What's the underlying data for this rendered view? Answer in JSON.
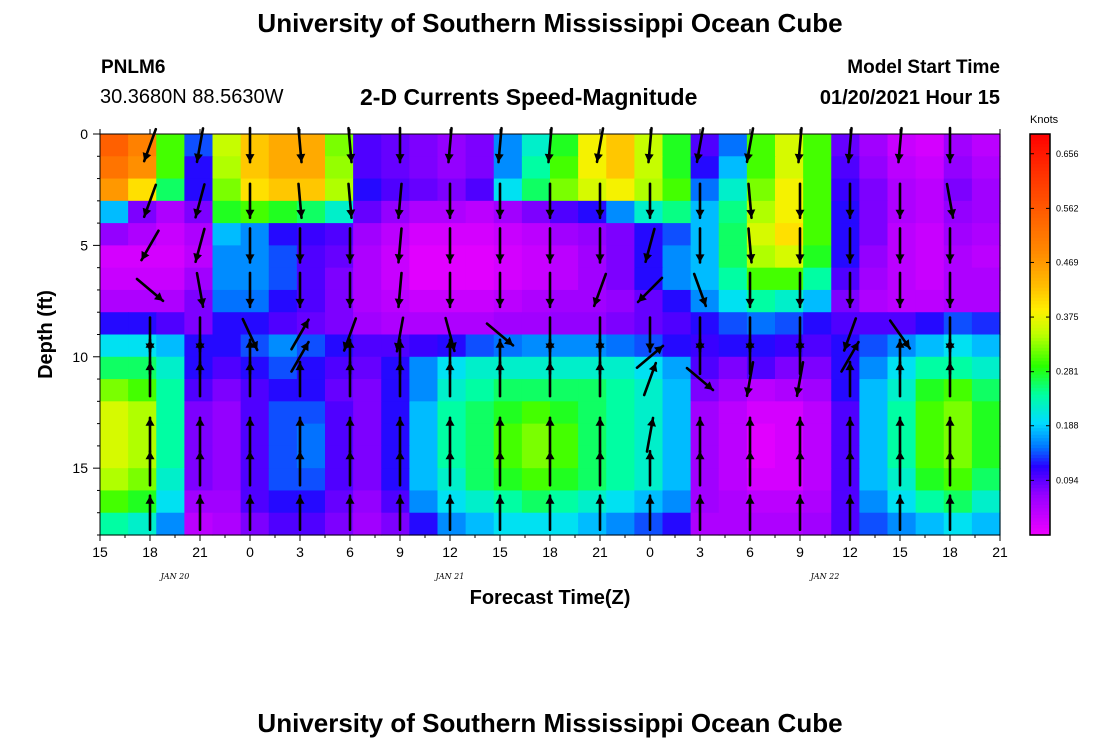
{
  "header": {
    "title": "University of Southern Mississippi Ocean Cube",
    "station": "PNLM6",
    "coordinates": "30.3680N 88.5630W",
    "subtitle": "2-D Currents Speed-Magnitude",
    "model_label": "Model Start Time",
    "model_time": "01/20/2021 Hour 15"
  },
  "footer": {
    "title": "University of Southern Mississippi Ocean Cube"
  },
  "chart_data": {
    "type": "heatmap",
    "xlabel": "Forecast Time(Z)",
    "ylabel": "Depth (ft)",
    "x_tick_labels": [
      "15",
      "18",
      "21",
      "0",
      "3",
      "6",
      "9",
      "12",
      "15",
      "18",
      "21",
      "0",
      "3",
      "6",
      "9",
      "12",
      "15",
      "18",
      "21"
    ],
    "date_labels": [
      {
        "text": "JAN 20",
        "at_tick": 1.5
      },
      {
        "text": "JAN 21",
        "at_tick": 7
      },
      {
        "text": "JAN 22",
        "at_tick": 14.5
      }
    ],
    "y_ticks": [
      0,
      5,
      10,
      15
    ],
    "ylim": [
      0,
      18
    ],
    "y_inverted": true,
    "colorbar": {
      "units": "Knots",
      "tick_labels": [
        "0.656",
        "0.562",
        "0.469",
        "0.375",
        "0.281",
        "0.188",
        "0.094"
      ],
      "tick_values": [
        0.656,
        0.562,
        0.469,
        0.375,
        0.281,
        0.188,
        0.094
      ],
      "range": [
        0,
        0.69
      ]
    },
    "depth_rows": [
      0.5,
      1.5,
      2.5,
      3.5,
      4.5,
      5.5,
      6.5,
      7.5,
      8.5,
      9.5,
      10.5,
      11.5,
      12.5,
      13.5,
      14.5,
      15.5,
      16.5,
      17.5
    ],
    "speed_knots": [
      [
        0.55,
        0.5,
        0.3,
        0.14,
        0.35,
        0.42,
        0.45,
        0.45,
        0.32,
        0.1,
        0.09,
        0.08,
        0.07,
        0.08,
        0.16,
        0.22,
        0.28,
        0.38,
        0.42,
        0.35,
        0.28,
        0.1,
        0.15,
        0.3,
        0.36,
        0.3,
        0.09,
        0.06,
        0.03,
        0.02,
        0.06,
        0.04
      ],
      [
        0.52,
        0.48,
        0.3,
        0.12,
        0.34,
        0.42,
        0.45,
        0.45,
        0.33,
        0.1,
        0.09,
        0.08,
        0.07,
        0.08,
        0.16,
        0.24,
        0.3,
        0.38,
        0.42,
        0.35,
        0.28,
        0.12,
        0.18,
        0.3,
        0.36,
        0.3,
        0.1,
        0.07,
        0.04,
        0.03,
        0.07,
        0.05
      ],
      [
        0.47,
        0.4,
        0.26,
        0.12,
        0.32,
        0.4,
        0.42,
        0.42,
        0.34,
        0.12,
        0.1,
        0.09,
        0.08,
        0.1,
        0.2,
        0.26,
        0.32,
        0.36,
        0.38,
        0.34,
        0.3,
        0.15,
        0.22,
        0.32,
        0.38,
        0.3,
        0.11,
        0.08,
        0.05,
        0.04,
        0.08,
        0.06
      ],
      [
        0.18,
        0.08,
        0.05,
        0.08,
        0.28,
        0.3,
        0.28,
        0.26,
        0.22,
        0.09,
        0.07,
        0.05,
        0.05,
        0.04,
        0.06,
        0.08,
        0.1,
        0.12,
        0.16,
        0.22,
        0.25,
        0.18,
        0.25,
        0.34,
        0.38,
        0.3,
        0.12,
        0.08,
        0.05,
        0.04,
        0.07,
        0.06
      ],
      [
        0.07,
        0.05,
        0.03,
        0.05,
        0.18,
        0.16,
        0.12,
        0.11,
        0.1,
        0.06,
        0.04,
        0.02,
        0.02,
        0.02,
        0.03,
        0.04,
        0.06,
        0.07,
        0.08,
        0.12,
        0.14,
        0.18,
        0.26,
        0.36,
        0.4,
        0.3,
        0.12,
        0.08,
        0.04,
        0.03,
        0.06,
        0.05
      ],
      [
        0.02,
        0.02,
        0.02,
        0.04,
        0.16,
        0.16,
        0.14,
        0.1,
        0.09,
        0.05,
        0.03,
        0.01,
        0.01,
        0.01,
        0.02,
        0.03,
        0.04,
        0.06,
        0.08,
        0.12,
        0.16,
        0.18,
        0.26,
        0.34,
        0.36,
        0.28,
        0.12,
        0.07,
        0.04,
        0.03,
        0.05,
        0.04
      ],
      [
        0.03,
        0.03,
        0.03,
        0.06,
        0.16,
        0.16,
        0.14,
        0.1,
        0.08,
        0.05,
        0.03,
        0.01,
        0.01,
        0.01,
        0.02,
        0.03,
        0.04,
        0.06,
        0.08,
        0.12,
        0.16,
        0.18,
        0.24,
        0.3,
        0.3,
        0.24,
        0.1,
        0.06,
        0.04,
        0.03,
        0.05,
        0.05
      ],
      [
        0.05,
        0.05,
        0.05,
        0.08,
        0.15,
        0.15,
        0.12,
        0.1,
        0.08,
        0.05,
        0.04,
        0.03,
        0.03,
        0.03,
        0.04,
        0.05,
        0.06,
        0.06,
        0.07,
        0.09,
        0.12,
        0.16,
        0.2,
        0.24,
        0.22,
        0.18,
        0.08,
        0.05,
        0.04,
        0.04,
        0.05,
        0.05
      ],
      [
        0.12,
        0.12,
        0.1,
        0.08,
        0.12,
        0.12,
        0.1,
        0.09,
        0.08,
        0.06,
        0.05,
        0.05,
        0.05,
        0.05,
        0.06,
        0.06,
        0.07,
        0.07,
        0.08,
        0.09,
        0.1,
        0.12,
        0.14,
        0.15,
        0.14,
        0.12,
        0.1,
        0.1,
        0.1,
        0.12,
        0.14,
        0.13
      ],
      [
        0.2,
        0.2,
        0.18,
        0.12,
        0.12,
        0.14,
        0.16,
        0.14,
        0.12,
        0.1,
        0.1,
        0.11,
        0.12,
        0.14,
        0.15,
        0.16,
        0.16,
        0.16,
        0.15,
        0.14,
        0.12,
        0.11,
        0.12,
        0.12,
        0.11,
        0.1,
        0.12,
        0.14,
        0.16,
        0.18,
        0.2,
        0.18
      ],
      [
        0.26,
        0.26,
        0.22,
        0.12,
        0.1,
        0.12,
        0.14,
        0.12,
        0.1,
        0.09,
        0.12,
        0.16,
        0.2,
        0.22,
        0.22,
        0.22,
        0.22,
        0.22,
        0.22,
        0.2,
        0.17,
        0.1,
        0.08,
        0.1,
        0.08,
        0.08,
        0.12,
        0.16,
        0.2,
        0.24,
        0.24,
        0.22
      ],
      [
        0.32,
        0.3,
        0.24,
        0.1,
        0.08,
        0.1,
        0.12,
        0.12,
        0.09,
        0.08,
        0.12,
        0.16,
        0.22,
        0.24,
        0.26,
        0.26,
        0.26,
        0.26,
        0.24,
        0.22,
        0.18,
        0.08,
        0.06,
        0.04,
        0.05,
        0.06,
        0.12,
        0.18,
        0.22,
        0.28,
        0.3,
        0.26
      ],
      [
        0.36,
        0.34,
        0.24,
        0.08,
        0.07,
        0.1,
        0.14,
        0.14,
        0.1,
        0.08,
        0.12,
        0.18,
        0.24,
        0.26,
        0.28,
        0.3,
        0.28,
        0.26,
        0.24,
        0.22,
        0.18,
        0.06,
        0.04,
        0.02,
        0.02,
        0.04,
        0.1,
        0.18,
        0.24,
        0.3,
        0.32,
        0.28
      ],
      [
        0.36,
        0.34,
        0.24,
        0.08,
        0.07,
        0.1,
        0.14,
        0.15,
        0.1,
        0.08,
        0.12,
        0.18,
        0.24,
        0.26,
        0.3,
        0.32,
        0.3,
        0.26,
        0.24,
        0.22,
        0.18,
        0.06,
        0.04,
        0.01,
        0.02,
        0.04,
        0.1,
        0.18,
        0.24,
        0.3,
        0.32,
        0.28
      ],
      [
        0.36,
        0.34,
        0.24,
        0.08,
        0.07,
        0.1,
        0.14,
        0.15,
        0.1,
        0.08,
        0.12,
        0.18,
        0.24,
        0.26,
        0.3,
        0.32,
        0.3,
        0.26,
        0.24,
        0.22,
        0.18,
        0.06,
        0.04,
        0.01,
        0.02,
        0.04,
        0.1,
        0.18,
        0.24,
        0.3,
        0.32,
        0.28
      ],
      [
        0.34,
        0.32,
        0.22,
        0.08,
        0.07,
        0.1,
        0.14,
        0.14,
        0.1,
        0.08,
        0.12,
        0.18,
        0.22,
        0.26,
        0.28,
        0.3,
        0.28,
        0.26,
        0.24,
        0.22,
        0.18,
        0.06,
        0.04,
        0.02,
        0.02,
        0.04,
        0.1,
        0.18,
        0.22,
        0.28,
        0.3,
        0.26
      ],
      [
        0.3,
        0.28,
        0.2,
        0.06,
        0.06,
        0.1,
        0.12,
        0.12,
        0.09,
        0.07,
        0.1,
        0.16,
        0.2,
        0.22,
        0.24,
        0.26,
        0.24,
        0.22,
        0.2,
        0.18,
        0.16,
        0.06,
        0.05,
        0.04,
        0.04,
        0.05,
        0.1,
        0.16,
        0.2,
        0.24,
        0.26,
        0.22
      ],
      [
        0.24,
        0.22,
        0.16,
        0.04,
        0.05,
        0.08,
        0.1,
        0.1,
        0.08,
        0.06,
        0.08,
        0.12,
        0.16,
        0.18,
        0.2,
        0.2,
        0.2,
        0.18,
        0.16,
        0.14,
        0.12,
        0.05,
        0.05,
        0.05,
        0.05,
        0.06,
        0.1,
        0.14,
        0.16,
        0.18,
        0.2,
        0.18
      ]
    ],
    "arrow_columns": [
      1,
      2,
      3,
      4,
      5,
      6,
      7,
      8,
      9,
      10,
      11,
      12,
      13,
      14,
      15,
      16,
      17
    ],
    "arrow_depths": [
      0.5,
      3,
      5,
      7,
      9,
      10,
      11,
      13.5,
      15,
      17
    ],
    "vectors_deg": [
      [
        200,
        190,
        180,
        175,
        175,
        180,
        185,
        185,
        185,
        190,
        185,
        190,
        190,
        185,
        185,
        185,
        180
      ],
      [
        200,
        195,
        180,
        175,
        175,
        185,
        180,
        180,
        180,
        180,
        180,
        180,
        175,
        180,
        180,
        180,
        170
      ],
      [
        210,
        195,
        180,
        180,
        180,
        185,
        180,
        180,
        180,
        180,
        195,
        180,
        175,
        180,
        180,
        180,
        180
      ],
      [
        130,
        170,
        180,
        180,
        180,
        185,
        180,
        180,
        180,
        200,
        225,
        160,
        180,
        180,
        180,
        180,
        180
      ],
      [
        180,
        180,
        155,
        30,
        200,
        190,
        165,
        130,
        180,
        180,
        180,
        180,
        180,
        180,
        200,
        145,
        180
      ],
      [
        0,
        0,
        0,
        30,
        0,
        0,
        0,
        0,
        0,
        0,
        50,
        0,
        0,
        0,
        30,
        0,
        0
      ],
      [
        0,
        0,
        0,
        0,
        0,
        0,
        0,
        0,
        0,
        0,
        20,
        130,
        190,
        190,
        0,
        0,
        0
      ],
      [
        0,
        0,
        0,
        0,
        0,
        0,
        0,
        0,
        0,
        0,
        10,
        0,
        0,
        0,
        0,
        0,
        0
      ],
      [
        0,
        0,
        0,
        0,
        0,
        0,
        0,
        0,
        0,
        0,
        0,
        0,
        0,
        0,
        0,
        0,
        0
      ],
      [
        0,
        0,
        0,
        0,
        0,
        0,
        0,
        0,
        0,
        0,
        0,
        0,
        0,
        0,
        0,
        0,
        0
      ]
    ]
  }
}
